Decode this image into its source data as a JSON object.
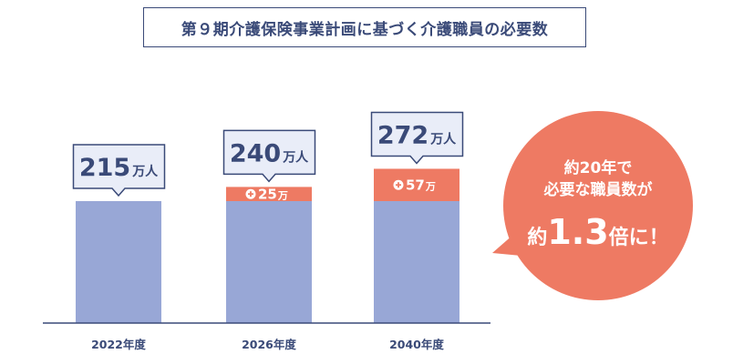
{
  "title": "第９期介護保険事業計画に基づく介護職員の必要数",
  "colors": {
    "base": "#98a7d6",
    "increase": "#ee7a63",
    "text": "#3a4a78",
    "axis": "#3a4a78",
    "callout_bg": "#e9edf8",
    "callout_border": "#3a4a78"
  },
  "icons": {
    "increase": "plus-circle-icon"
  },
  "chart_data": {
    "type": "bar",
    "stacked": true,
    "categories": [
      "2022年度",
      "2026年度",
      "2040年度"
    ],
    "series": [
      {
        "key": "base",
        "values": [
          215,
          215,
          215
        ]
      },
      {
        "key": "increase",
        "values": [
          0,
          25,
          57
        ]
      }
    ],
    "totals": [
      215,
      240,
      272
    ],
    "value_unit": "万人",
    "increase_labels": [
      "",
      "25",
      "57"
    ],
    "increase_unit": "万",
    "ylim": [
      0,
      285
    ]
  },
  "bubble": {
    "line1": "約20年で",
    "line2": "必要な職員数が",
    "prefix": "約",
    "value": "1.3",
    "suffix": "倍に！"
  }
}
